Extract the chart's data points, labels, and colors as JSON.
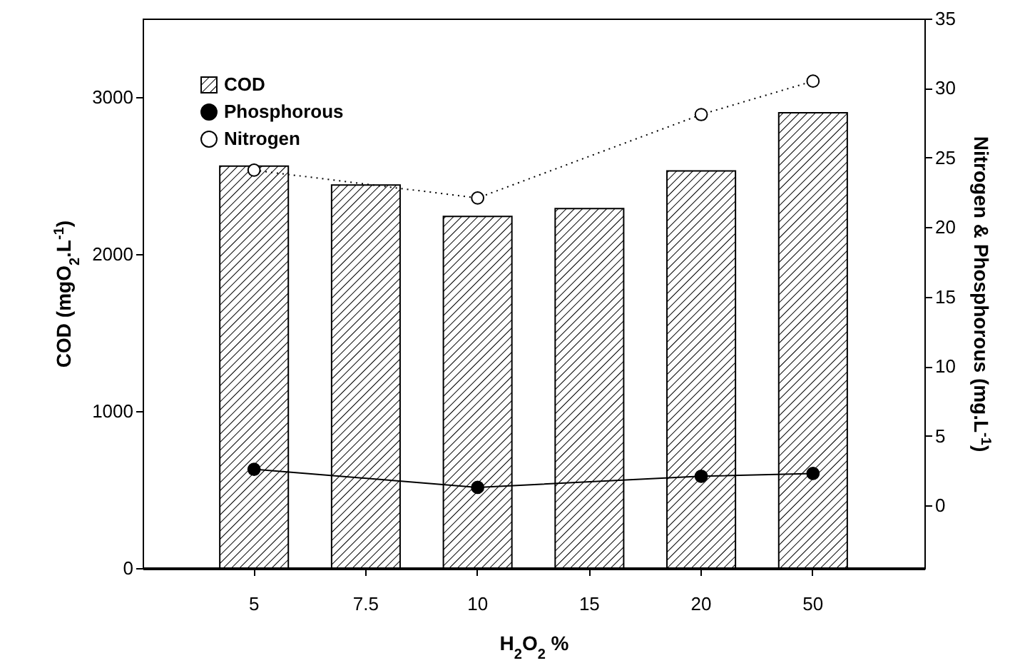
{
  "chart_data": {
    "type": "bar",
    "xlabel": "H$_{2}$O$_{2}$ %",
    "ylabel": "COD (mgO$_{2}$.L$^{-1}$)",
    "y2label": "Nitrogen & Phosphorous (mg.L$^{-1}$)",
    "categories": [
      "5",
      "7.5",
      "10",
      "15",
      "20",
      "50"
    ],
    "series": [
      {
        "name": "COD",
        "values": [
          2560,
          2440,
          2240,
          2290,
          2530,
          2900
        ]
      },
      {
        "name": "Phosphorous",
        "type": "line",
        "axis": "y2",
        "color": "#000000",
        "marker": "circle",
        "line_style": "solid",
        "values": [
          2.6,
          null,
          1.3,
          null,
          2.1,
          2.3
        ]
      },
      {
        "name": "Nitrogen",
        "type": "line",
        "axis": "y2",
        "color": "#000000",
        "marker": "circle",
        "line_style": "dotted",
        "values": [
          24.1,
          null,
          22.1,
          null,
          28.1,
          30.5
        ]
      }
    ],
    "ylim": [
      0,
      3500
    ],
    "yticks": [
      0,
      1000,
      2000,
      3000
    ],
    "y2lim": [
      -4.5,
      35
    ],
    "y2ticks": [
      0,
      5,
      10,
      15,
      20,
      25,
      30,
      35
    ],
    "legend": "top left",
    "grid": false
  }
}
